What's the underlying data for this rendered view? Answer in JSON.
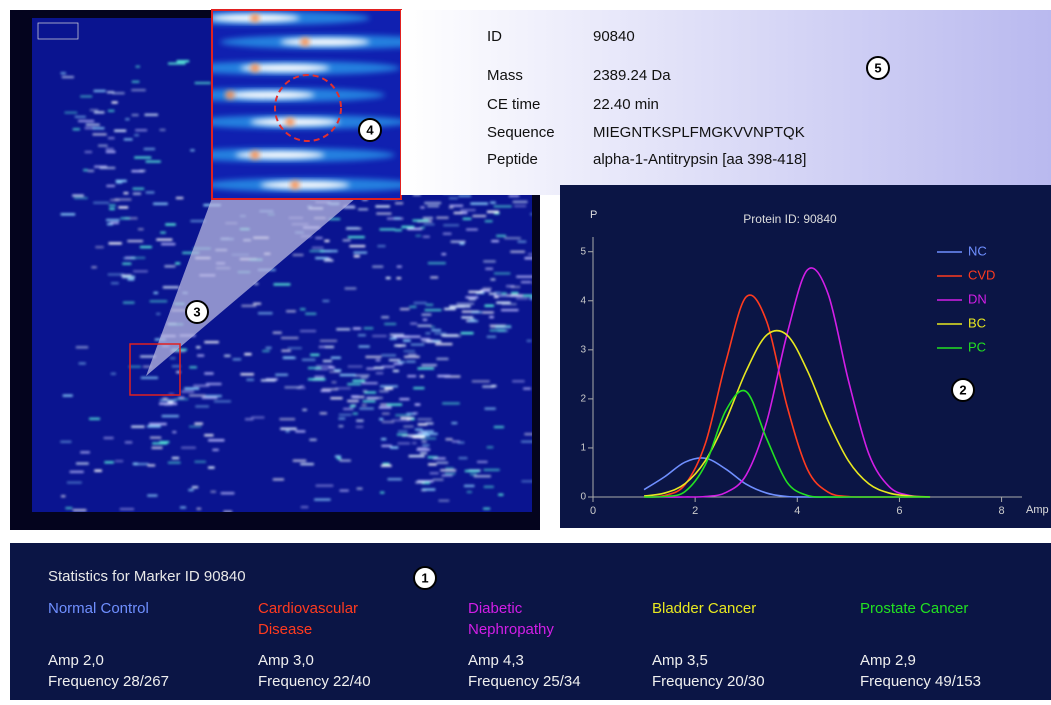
{
  "info": {
    "rows": [
      {
        "key": "ID",
        "value": "90840"
      },
      {
        "key": "Mass",
        "value": "2389.24 Da"
      },
      {
        "key": "CE time",
        "value": "22.40 min"
      },
      {
        "key": "Sequence",
        "value": "MIEGNTKSPLFMGKVVNPTQK"
      },
      {
        "key": "Peptide",
        "value": "alpha-1-Antitrypsin [aa 398-418]"
      }
    ]
  },
  "callouts": [
    "1",
    "2",
    "3",
    "4",
    "5"
  ],
  "chart_data": {
    "type": "line",
    "title": "Protein ID: 90840",
    "x_label": "Amp",
    "y_label": "P",
    "x": [
      1.0,
      1.4,
      1.8,
      2.2,
      2.6,
      3.0,
      3.4,
      3.8,
      4.2,
      4.6,
      5.0,
      5.4,
      5.8,
      6.2,
      6.6
    ],
    "series": [
      {
        "name": "NC",
        "color": "#6f8fff",
        "values": [
          0.15,
          0.41,
          0.71,
          0.79,
          0.57,
          0.26,
          0.08,
          0.01,
          0,
          0,
          0,
          0,
          0,
          0,
          0
        ]
      },
      {
        "name": "CVD",
        "color": "#ff3b1f",
        "values": [
          0,
          0.03,
          0.25,
          1.09,
          2.75,
          4.08,
          3.58,
          1.85,
          0.56,
          0.1,
          0.01,
          0,
          0,
          0,
          0
        ]
      },
      {
        "name": "DN",
        "color": "#d21ee6",
        "values": [
          0,
          0,
          0,
          0.01,
          0.09,
          0.45,
          1.53,
          3.32,
          4.63,
          4.15,
          2.38,
          0.88,
          0.21,
          0.03,
          0
        ]
      },
      {
        "name": "BC",
        "color": "#e8e820",
        "values": [
          0.02,
          0.08,
          0.27,
          0.74,
          1.56,
          2.57,
          3.3,
          3.3,
          2.57,
          1.56,
          0.74,
          0.27,
          0.08,
          0.02,
          0
        ]
      },
      {
        "name": "PC",
        "color": "#22e022",
        "values": [
          0,
          0.01,
          0.11,
          0.66,
          1.76,
          2.15,
          1.19,
          0.3,
          0.03,
          0,
          0,
          0,
          0,
          0,
          0
        ]
      }
    ],
    "xlim": [
      0,
      8.4
    ],
    "ylim": [
      0,
      5.3
    ],
    "xticks": [
      0,
      2,
      4,
      6,
      8
    ],
    "yticks": [
      0,
      1,
      2,
      3,
      4,
      5
    ]
  },
  "statistics": {
    "title": "Statistics for Marker ID 90840",
    "groups": [
      {
        "name": "Normal Control",
        "color": "#6f8fff",
        "amp": "Amp 2,0",
        "frequency": "Frequency 28/267"
      },
      {
        "name": "Cardiovascular Disease",
        "color": "#ff3b1f",
        "amp": "Amp 3,0",
        "frequency": "Frequency 22/40"
      },
      {
        "name": "Diabetic Nephropathy",
        "color": "#d21ee6",
        "amp": "Amp 4,3",
        "frequency": "Frequency 25/34"
      },
      {
        "name": "Bladder Cancer",
        "color": "#e8e820",
        "amp": "Amp 3,5",
        "frequency": "Frequency 20/30"
      },
      {
        "name": "Prostate Cancer",
        "color": "#22e022",
        "amp": "Amp 2,9",
        "frequency": "Frequency 49/153"
      }
    ]
  }
}
